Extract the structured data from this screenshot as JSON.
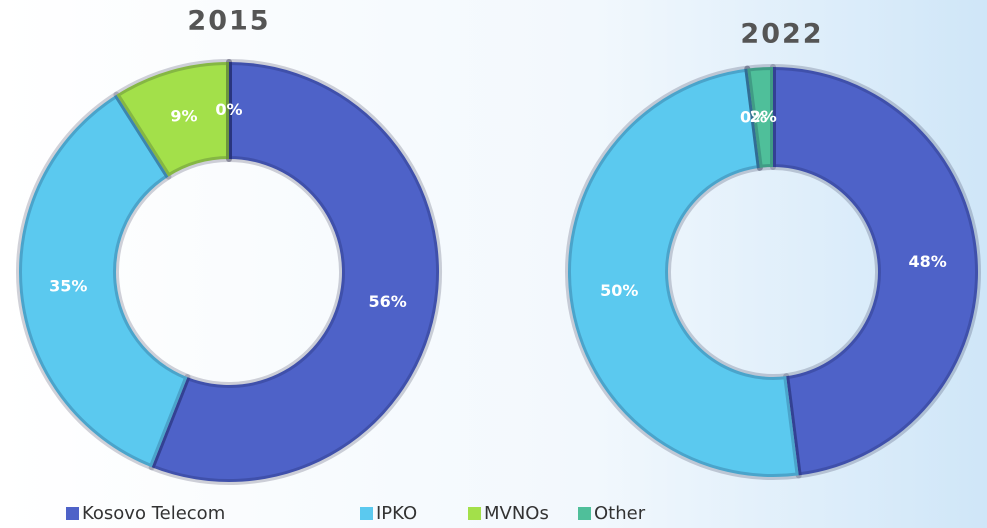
{
  "chart_data": [
    {
      "type": "pie",
      "title": "2015",
      "categories": [
        "Kosovo Telecom",
        "IPKO",
        "MVNOs",
        "Other"
      ],
      "values": [
        56,
        35,
        9,
        0
      ],
      "value_labels": [
        "56%",
        "35%",
        "9%",
        "0%"
      ],
      "colors": [
        "#4e62c8",
        "#5bc9ef",
        "#a3e04a",
        "#4fbf9a"
      ]
    },
    {
      "type": "pie",
      "title": "2022",
      "categories": [
        "Kosovo Telecom",
        "IPKO",
        "MVNOs",
        "Other"
      ],
      "values": [
        48,
        50,
        0,
        2
      ],
      "value_labels": [
        "48%",
        "50%",
        "0%",
        "2%"
      ],
      "colors": [
        "#4e62c8",
        "#5bc9ef",
        "#a3e04a",
        "#4fbf9a"
      ]
    }
  ]
}
